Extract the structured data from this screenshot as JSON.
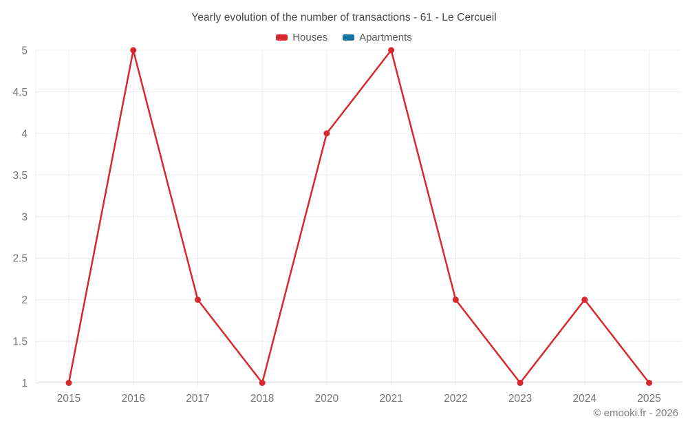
{
  "header": {
    "title": "Yearly evolution of the number of transactions - 61 - Le Cercueil"
  },
  "legend": [
    {
      "label": "Houses",
      "color": "#d7282f"
    },
    {
      "label": "Apartments",
      "color": "#1572a5"
    }
  ],
  "footer": {
    "copyright": "© emooki.fr - 2026"
  },
  "chart_data": {
    "type": "line",
    "title": "Yearly evolution of the number of transactions - 61 - Le Cercueil",
    "categories": [
      "2015",
      "2016",
      "2017",
      "2018",
      "2020",
      "2021",
      "2022",
      "2023",
      "2024",
      "2025"
    ],
    "series": [
      {
        "name": "Houses",
        "color": "#d7282f",
        "values": [
          1,
          5,
          2,
          1,
          4,
          5,
          2,
          1,
          2,
          1
        ]
      },
      {
        "name": "Apartments",
        "color": "#1572a5",
        "values": []
      }
    ],
    "xlabel": "",
    "ylabel": "",
    "ylim": [
      1,
      5
    ],
    "yticks": [
      1,
      1.5,
      2,
      2.5,
      3,
      3.5,
      4,
      4.5,
      5
    ],
    "grid": true,
    "legend_position": "top",
    "colors": {
      "gridline": "#ececec",
      "baseline": "#dcdcdc",
      "tick_label": "#757575"
    }
  }
}
